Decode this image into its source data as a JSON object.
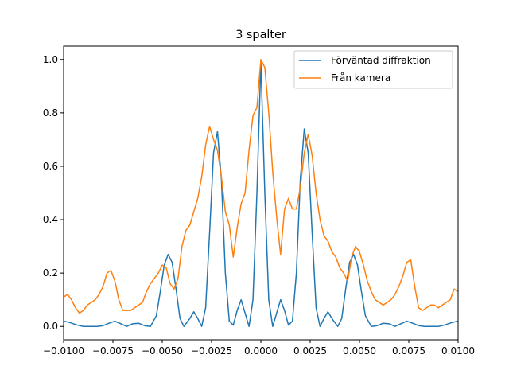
{
  "chart_data": {
    "type": "line",
    "title": "3 spalter",
    "xlabel": "",
    "ylabel": "",
    "xlim": [
      -0.01,
      0.01
    ],
    "ylim": [
      -0.05,
      1.05
    ],
    "xticks": [
      -0.01,
      -0.0075,
      -0.005,
      -0.0025,
      0.0,
      0.0025,
      0.005,
      0.0075,
      0.01
    ],
    "xtick_labels": [
      "−0.0100",
      "−0.0075",
      "−0.0050",
      "−0.0025",
      "0.0000",
      "0.0025",
      "0.0050",
      "0.0075",
      "0.0100"
    ],
    "yticks": [
      0.0,
      0.2,
      0.4,
      0.6,
      0.8,
      1.0
    ],
    "ytick_labels": [
      "0.0",
      "0.2",
      "0.4",
      "0.6",
      "0.8",
      "1.0"
    ],
    "grid": false,
    "legend_position": "top-right",
    "series": [
      {
        "name": "Förväntad diffraktion",
        "color": "#1f77b4",
        "x": [
          -0.01,
          -0.0097,
          -0.0093,
          -0.009,
          -0.0087,
          -0.0083,
          -0.008,
          -0.0077,
          -0.0074,
          -0.0071,
          -0.0068,
          -0.0065,
          -0.0062,
          -0.0059,
          -0.0056,
          -0.0053,
          -0.0051,
          -0.0049,
          -0.0047,
          -0.0045,
          -0.0043,
          -0.0041,
          -0.0039,
          -0.0036,
          -0.0034,
          -0.0032,
          -0.003,
          -0.0028,
          -0.0026,
          -0.0024,
          -0.0022,
          -0.002,
          -0.0018,
          -0.0016,
          -0.0014,
          -0.0012,
          -0.001,
          -0.0008,
          -0.0006,
          -0.0004,
          -0.0002,
          0.0,
          0.0002,
          0.0004,
          0.0006,
          0.0008,
          0.001,
          0.0012,
          0.0014,
          0.0016,
          0.0018,
          0.002,
          0.0022,
          0.0024,
          0.0026,
          0.0028,
          0.003,
          0.0032,
          0.0034,
          0.0036,
          0.0039,
          0.0041,
          0.0043,
          0.0045,
          0.0047,
          0.0049,
          0.0051,
          0.0053,
          0.0056,
          0.0059,
          0.0062,
          0.0065,
          0.0068,
          0.0071,
          0.0074,
          0.0077,
          0.008,
          0.0083,
          0.0087,
          0.009,
          0.0093,
          0.0097,
          0.01
        ],
        "y": [
          0.02,
          0.015,
          0.005,
          0.0,
          0.0,
          0.0,
          0.003,
          0.012,
          0.02,
          0.01,
          0.0,
          0.01,
          0.012,
          0.003,
          0.0,
          0.04,
          0.13,
          0.23,
          0.27,
          0.24,
          0.14,
          0.03,
          0.0,
          0.03,
          0.055,
          0.03,
          0.0,
          0.07,
          0.35,
          0.65,
          0.73,
          0.55,
          0.2,
          0.02,
          0.005,
          0.06,
          0.1,
          0.05,
          0.0,
          0.1,
          0.5,
          0.99,
          0.5,
          0.1,
          0.0,
          0.05,
          0.1,
          0.06,
          0.005,
          0.02,
          0.2,
          0.55,
          0.74,
          0.65,
          0.35,
          0.07,
          0.0,
          0.03,
          0.055,
          0.03,
          0.0,
          0.03,
          0.14,
          0.24,
          0.27,
          0.23,
          0.13,
          0.04,
          0.0,
          0.003,
          0.012,
          0.01,
          0.0,
          0.01,
          0.02,
          0.012,
          0.003,
          0.0,
          0.0,
          0.0,
          0.005,
          0.015,
          0.02
        ]
      },
      {
        "name": "Från kamera",
        "color": "#ff7f0e",
        "x": [
          -0.01,
          -0.0098,
          -0.0096,
          -0.0094,
          -0.0092,
          -0.009,
          -0.0088,
          -0.0086,
          -0.0084,
          -0.0082,
          -0.008,
          -0.0078,
          -0.0076,
          -0.0074,
          -0.0072,
          -0.007,
          -0.0068,
          -0.0066,
          -0.0064,
          -0.0062,
          -0.006,
          -0.0058,
          -0.0056,
          -0.0054,
          -0.0052,
          -0.005,
          -0.0048,
          -0.0046,
          -0.0044,
          -0.0042,
          -0.004,
          -0.0038,
          -0.0036,
          -0.0034,
          -0.0032,
          -0.003,
          -0.0028,
          -0.0026,
          -0.0024,
          -0.0022,
          -0.002,
          -0.0018,
          -0.0016,
          -0.0014,
          -0.0012,
          -0.001,
          -0.0008,
          -0.0006,
          -0.0004,
          -0.0002,
          0.0,
          0.0002,
          0.0004,
          0.0006,
          0.0008,
          0.001,
          0.0012,
          0.0014,
          0.0016,
          0.0018,
          0.002,
          0.0022,
          0.0024,
          0.0026,
          0.0028,
          0.003,
          0.0032,
          0.0034,
          0.0036,
          0.0038,
          0.004,
          0.0042,
          0.0044,
          0.0046,
          0.0048,
          0.005,
          0.0052,
          0.0054,
          0.0056,
          0.0058,
          0.006,
          0.0062,
          0.0064,
          0.0066,
          0.0068,
          0.007,
          0.0072,
          0.0074,
          0.0076,
          0.0078,
          0.008,
          0.0082,
          0.0084,
          0.0086,
          0.0088,
          0.009,
          0.0092,
          0.0094,
          0.0096,
          0.0098,
          0.01
        ],
        "y": [
          0.11,
          0.12,
          0.1,
          0.07,
          0.05,
          0.06,
          0.08,
          0.09,
          0.1,
          0.12,
          0.15,
          0.2,
          0.21,
          0.17,
          0.1,
          0.06,
          0.06,
          0.06,
          0.07,
          0.08,
          0.09,
          0.13,
          0.16,
          0.18,
          0.2,
          0.23,
          0.22,
          0.16,
          0.14,
          0.18,
          0.3,
          0.36,
          0.38,
          0.43,
          0.48,
          0.56,
          0.68,
          0.75,
          0.7,
          0.66,
          0.56,
          0.43,
          0.38,
          0.26,
          0.37,
          0.46,
          0.5,
          0.66,
          0.79,
          0.82,
          1.0,
          0.97,
          0.8,
          0.58,
          0.41,
          0.27,
          0.44,
          0.48,
          0.44,
          0.44,
          0.52,
          0.65,
          0.72,
          0.64,
          0.5,
          0.4,
          0.34,
          0.32,
          0.28,
          0.26,
          0.22,
          0.2,
          0.17,
          0.26,
          0.3,
          0.28,
          0.23,
          0.17,
          0.13,
          0.1,
          0.09,
          0.08,
          0.09,
          0.1,
          0.12,
          0.15,
          0.19,
          0.24,
          0.25,
          0.15,
          0.07,
          0.06,
          0.07,
          0.08,
          0.08,
          0.07,
          0.08,
          0.09,
          0.1,
          0.14,
          0.13
        ]
      }
    ]
  }
}
